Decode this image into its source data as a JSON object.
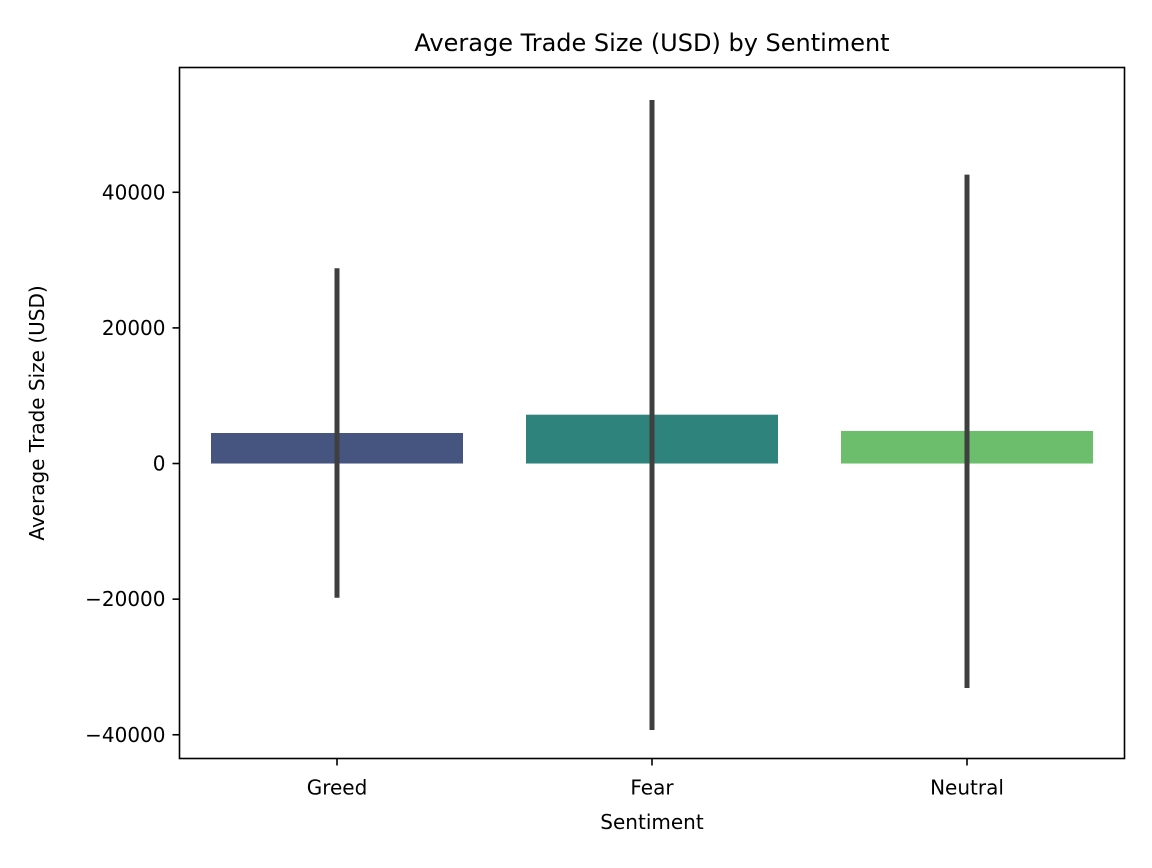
{
  "chart_data": {
    "type": "bar",
    "title": "Average Trade Size (USD) by Sentiment",
    "xlabel": "Sentiment",
    "ylabel": "Average Trade Size (USD)",
    "categories": [
      "Greed",
      "Fear",
      "Neutral"
    ],
    "values": [
      4500,
      7200,
      4800
    ],
    "error_bars": [
      {
        "low": -19800,
        "high": 28800
      },
      {
        "low": -39300,
        "high": 53600
      },
      {
        "low": -33100,
        "high": 42600
      }
    ],
    "colors": [
      "#46557f",
      "#2e837c",
      "#6cbd6c"
    ],
    "error_color": "#3f3f3f",
    "ylim": [
      -43500,
      58400
    ],
    "yticks": [
      -40000,
      -20000,
      0,
      20000,
      40000
    ],
    "ytick_labels": [
      "−40000",
      "−20000",
      "0",
      "20000",
      "40000"
    ],
    "grid": false,
    "legend": "none"
  }
}
